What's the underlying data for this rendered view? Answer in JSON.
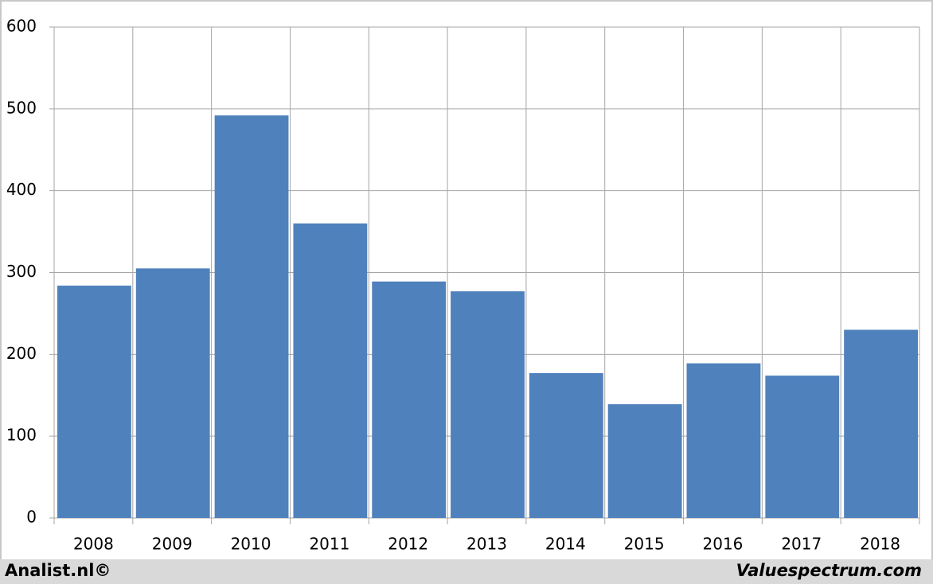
{
  "chart_data": {
    "type": "bar",
    "categories": [
      "2008",
      "2009",
      "2010",
      "2011",
      "2012",
      "2013",
      "2014",
      "2015",
      "2016",
      "2017",
      "2018"
    ],
    "values": [
      284,
      305,
      492,
      360,
      289,
      277,
      177,
      139,
      189,
      174,
      230
    ],
    "color": "#4f81bd",
    "ylim": [
      0,
      600
    ],
    "yticks": [
      0,
      100,
      200,
      300,
      400,
      500,
      600
    ],
    "grid": true
  },
  "footer": {
    "left": "Analist.nl©",
    "right": "Valuespectrum.com"
  }
}
